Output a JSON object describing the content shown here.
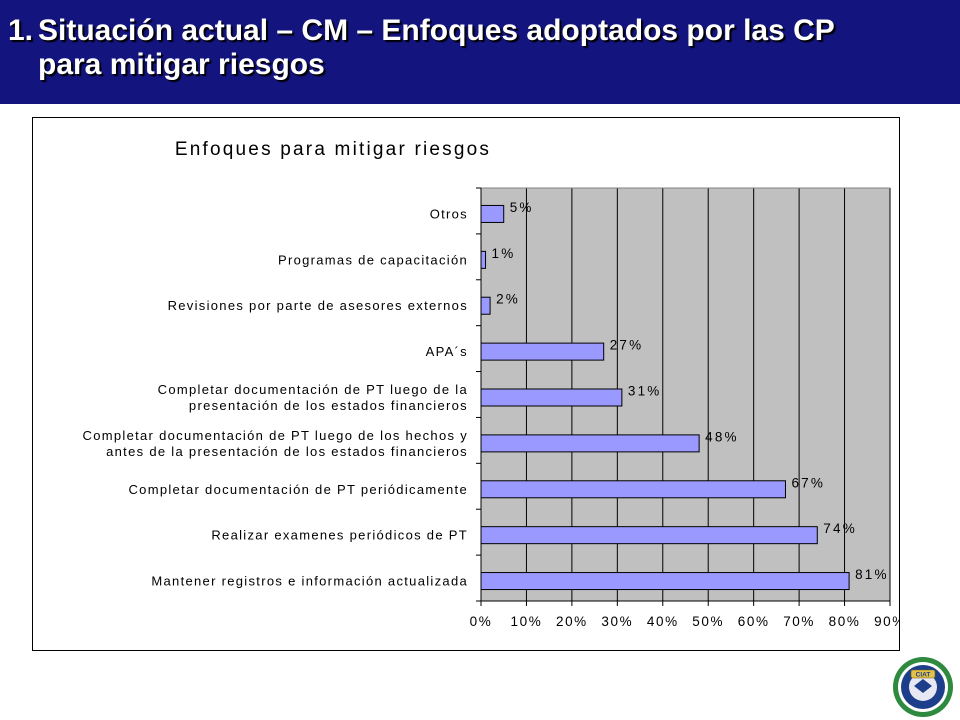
{
  "slide": {
    "title_number": "1.",
    "title_line1": "Situación actual – CM – Enfoques adoptados por las CP",
    "title_line2": "para mitigar riesgos"
  },
  "colors": {
    "title_bar": "#13147e",
    "plot_background": "#c0c0c0",
    "bar_fill": "#9999ff",
    "bar_stroke": "#000000"
  },
  "logo": {
    "icon": "institution-seal-logo",
    "text": "CIAT"
  },
  "chart_data": {
    "type": "bar",
    "orientation": "horizontal",
    "title": "Enfoques para mitigar riesgos",
    "categories": [
      [
        "Otros"
      ],
      [
        "Programas de capacitación"
      ],
      [
        "Revisiones por parte de asesores externos"
      ],
      [
        "APA´s"
      ],
      [
        "Completar documentación de PT luego de la",
        "presentación de los estados financieros"
      ],
      [
        "Completar documentación de PT luego de los hechos y",
        "antes de la presentación de los estados financieros"
      ],
      [
        "Completar documentación de PT periódicamente"
      ],
      [
        "Realizar examenes periódicos de PT"
      ],
      [
        "Mantener registros e información actualizada"
      ]
    ],
    "values": [
      5,
      1,
      2,
      27,
      31,
      48,
      67,
      74,
      81
    ],
    "value_labels": [
      "5%",
      "1%",
      "2%",
      "27%",
      "31%",
      "48%",
      "67%",
      "74%",
      "81%"
    ],
    "x_ticks": [
      "0%",
      "10%",
      "20%",
      "30%",
      "40%",
      "50%",
      "60%",
      "70%",
      "80%",
      "90%"
    ],
    "xlim": [
      0,
      90
    ],
    "xlabel": "",
    "ylabel": "",
    "grid": true,
    "legend": "none"
  }
}
